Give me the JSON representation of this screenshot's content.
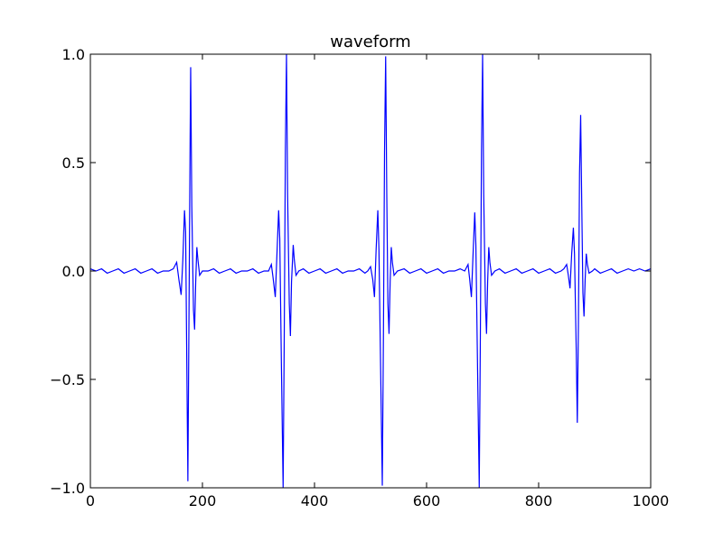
{
  "chart_data": {
    "type": "line",
    "title": "waveform",
    "xlabel": "",
    "ylabel": "",
    "xlim": [
      0,
      1000
    ],
    "ylim": [
      -1.0,
      1.0
    ],
    "grid": false,
    "x_ticks": [
      0,
      200,
      400,
      600,
      800,
      1000
    ],
    "y_ticks": [
      -1.0,
      -0.5,
      0.0,
      0.5,
      1.0
    ],
    "x_tick_labels": [
      "0",
      "200",
      "400",
      "600",
      "800",
      "1000"
    ],
    "y_tick_labels": [
      "−1.0",
      "−0.5",
      "0.0",
      "0.5",
      "1.0"
    ],
    "series": [
      {
        "color": "#0000ff",
        "points": [
          [
            0,
            0.01
          ],
          [
            10,
            0.0
          ],
          [
            20,
            0.01
          ],
          [
            30,
            -0.01
          ],
          [
            40,
            0.0
          ],
          [
            50,
            0.01
          ],
          [
            60,
            -0.01
          ],
          [
            70,
            0.0
          ],
          [
            80,
            0.01
          ],
          [
            90,
            -0.01
          ],
          [
            100,
            0.0
          ],
          [
            110,
            0.01
          ],
          [
            120,
            -0.01
          ],
          [
            130,
            0.0
          ],
          [
            140,
            0.0
          ],
          [
            148,
            0.01
          ],
          [
            154,
            0.04
          ],
          [
            158,
            -0.04
          ],
          [
            162,
            -0.11
          ],
          [
            165,
            0.05
          ],
          [
            168,
            0.28
          ],
          [
            170,
            0.18
          ],
          [
            172,
            -0.4
          ],
          [
            174,
            -0.97
          ],
          [
            176,
            -0.2
          ],
          [
            178,
            0.6
          ],
          [
            179,
            0.94
          ],
          [
            181,
            0.3
          ],
          [
            184,
            -0.18
          ],
          [
            186,
            -0.27
          ],
          [
            188,
            -0.05
          ],
          [
            190,
            0.11
          ],
          [
            192,
            0.05
          ],
          [
            195,
            -0.02
          ],
          [
            200,
            0.0
          ],
          [
            210,
            0.0
          ],
          [
            220,
            0.01
          ],
          [
            230,
            -0.01
          ],
          [
            240,
            0.0
          ],
          [
            250,
            0.01
          ],
          [
            260,
            -0.01
          ],
          [
            270,
            0.0
          ],
          [
            280,
            0.0
          ],
          [
            290,
            0.01
          ],
          [
            300,
            -0.01
          ],
          [
            310,
            0.0
          ],
          [
            318,
            0.0
          ],
          [
            323,
            0.03
          ],
          [
            326,
            -0.03
          ],
          [
            330,
            -0.12
          ],
          [
            333,
            0.08
          ],
          [
            336,
            0.28
          ],
          [
            338,
            0.15
          ],
          [
            341,
            -0.45
          ],
          [
            344,
            -1.0
          ],
          [
            346,
            -0.3
          ],
          [
            348,
            0.55
          ],
          [
            350,
            1.0
          ],
          [
            352,
            0.35
          ],
          [
            355,
            -0.15
          ],
          [
            357,
            -0.3
          ],
          [
            359,
            -0.05
          ],
          [
            362,
            0.12
          ],
          [
            364,
            0.05
          ],
          [
            367,
            -0.02
          ],
          [
            372,
            0.0
          ],
          [
            380,
            0.01
          ],
          [
            390,
            -0.01
          ],
          [
            400,
            0.0
          ],
          [
            410,
            0.01
          ],
          [
            420,
            -0.01
          ],
          [
            430,
            0.0
          ],
          [
            440,
            0.01
          ],
          [
            450,
            -0.01
          ],
          [
            460,
            0.0
          ],
          [
            470,
            0.0
          ],
          [
            480,
            0.01
          ],
          [
            490,
            -0.01
          ],
          [
            495,
            0.0
          ],
          [
            500,
            0.02
          ],
          [
            504,
            -0.04
          ],
          [
            507,
            -0.12
          ],
          [
            510,
            0.1
          ],
          [
            513,
            0.28
          ],
          [
            515,
            0.1
          ],
          [
            518,
            -0.45
          ],
          [
            521,
            -0.99
          ],
          [
            523,
            -0.3
          ],
          [
            525,
            0.55
          ],
          [
            527,
            0.99
          ],
          [
            529,
            0.35
          ],
          [
            531,
            -0.15
          ],
          [
            533,
            -0.29
          ],
          [
            535,
            -0.05
          ],
          [
            537,
            0.11
          ],
          [
            539,
            0.04
          ],
          [
            542,
            -0.02
          ],
          [
            548,
            0.0
          ],
          [
            560,
            0.01
          ],
          [
            570,
            -0.01
          ],
          [
            580,
            0.0
          ],
          [
            590,
            0.01
          ],
          [
            600,
            -0.01
          ],
          [
            610,
            0.0
          ],
          [
            620,
            0.01
          ],
          [
            630,
            -0.01
          ],
          [
            640,
            0.0
          ],
          [
            650,
            0.0
          ],
          [
            660,
            0.01
          ],
          [
            668,
            0.0
          ],
          [
            674,
            0.03
          ],
          [
            677,
            -0.04
          ],
          [
            680,
            -0.12
          ],
          [
            683,
            0.08
          ],
          [
            686,
            0.27
          ],
          [
            688,
            0.12
          ],
          [
            691,
            -0.45
          ],
          [
            694,
            -1.0
          ],
          [
            696,
            -0.3
          ],
          [
            698,
            0.55
          ],
          [
            700,
            1.0
          ],
          [
            702,
            0.35
          ],
          [
            705,
            -0.15
          ],
          [
            707,
            -0.29
          ],
          [
            709,
            -0.05
          ],
          [
            711,
            0.11
          ],
          [
            713,
            0.04
          ],
          [
            716,
            -0.02
          ],
          [
            722,
            0.0
          ],
          [
            730,
            0.01
          ],
          [
            740,
            -0.01
          ],
          [
            750,
            0.0
          ],
          [
            760,
            0.01
          ],
          [
            770,
            -0.01
          ],
          [
            780,
            0.0
          ],
          [
            790,
            0.01
          ],
          [
            800,
            -0.01
          ],
          [
            810,
            0.0
          ],
          [
            820,
            0.01
          ],
          [
            830,
            -0.01
          ],
          [
            840,
            0.0
          ],
          [
            845,
            0.01
          ],
          [
            850,
            0.03
          ],
          [
            853,
            -0.02
          ],
          [
            856,
            -0.08
          ],
          [
            859,
            0.08
          ],
          [
            862,
            0.2
          ],
          [
            864,
            0.08
          ],
          [
            867,
            -0.35
          ],
          [
            869,
            -0.7
          ],
          [
            871,
            -0.25
          ],
          [
            873,
            0.45
          ],
          [
            875,
            0.72
          ],
          [
            877,
            0.3
          ],
          [
            879,
            -0.1
          ],
          [
            881,
            -0.21
          ],
          [
            883,
            -0.04
          ],
          [
            885,
            0.08
          ],
          [
            887,
            0.03
          ],
          [
            890,
            -0.01
          ],
          [
            896,
            0.0
          ],
          [
            900,
            0.01
          ],
          [
            910,
            -0.01
          ],
          [
            920,
            0.0
          ],
          [
            930,
            0.01
          ],
          [
            940,
            -0.01
          ],
          [
            950,
            0.0
          ],
          [
            960,
            0.01
          ],
          [
            970,
            0.0
          ],
          [
            980,
            0.01
          ],
          [
            990,
            0.0
          ],
          [
            1000,
            0.01
          ]
        ]
      }
    ]
  }
}
